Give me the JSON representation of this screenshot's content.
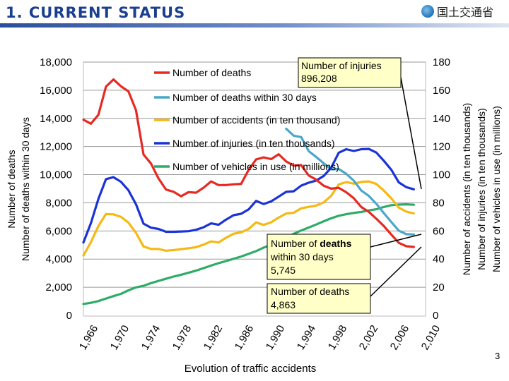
{
  "header": {
    "title": "1. CURRENT STATUS",
    "logo_text": "国土交通省"
  },
  "page_number": "3",
  "caption": "Evolution of traffic accidents",
  "chart_data": {
    "type": "line",
    "title": "Evolution of traffic accidents",
    "xlabel": "",
    "ylabel_left": [
      "Number of deaths",
      "Number of deaths within 30 days"
    ],
    "ylabel_right": [
      "Number of accidents (in ten thousands)",
      "Number of injuries (in ten thousands)",
      "Number of vehicles in use (in millions)"
    ],
    "x_ticks": [
      "1,966",
      "1,970",
      "1,974",
      "1,978",
      "1,982",
      "1,986",
      "1,990",
      "1,994",
      "1,998",
      "2,002",
      "2,006",
      "2,010"
    ],
    "left_ticks": [
      "0",
      "2,000",
      "4,000",
      "6,000",
      "8,000",
      "10,000",
      "12,000",
      "14,000",
      "16,000",
      "18,000"
    ],
    "right_ticks": [
      "0",
      "20",
      "40",
      "60",
      "80",
      "100",
      "120",
      "140",
      "160",
      "180"
    ],
    "xlim": [
      1966,
      2011
    ],
    "ylim_left": [
      0,
      18000
    ],
    "ylim_right": [
      0,
      180
    ],
    "grid": "horizontal",
    "series": [
      {
        "name": "Number of deaths",
        "axis": "left",
        "color": "#e62a22",
        "x": [
          1966,
          1967,
          1968,
          1969,
          1970,
          1971,
          1972,
          1973,
          1974,
          1975,
          1976,
          1977,
          1978,
          1979,
          1980,
          1981,
          1982,
          1983,
          1984,
          1985,
          1986,
          1987,
          1988,
          1989,
          1990,
          1991,
          1992,
          1993,
          1994,
          1995,
          1996,
          1997,
          1998,
          1999,
          2000,
          2001,
          2002,
          2003,
          2004,
          2005,
          2006,
          2007,
          2008,
          2009,
          2010
        ],
        "values": [
          13904,
          13618,
          14256,
          16257,
          16765,
          16278,
          15918,
          14574,
          11432,
          10792,
          9734,
          8945,
          8783,
          8466,
          8760,
          8719,
          9073,
          9520,
          9262,
          9261,
          9317,
          9347,
          10344,
          11086,
          11227,
          11105,
          11451,
          10942,
          10649,
          10679,
          9942,
          9640,
          9211,
          9006,
          9066,
          8747,
          8326,
          7702,
          7358,
          6871,
          6352,
          5744,
          5155,
          4914,
          4863
        ]
      },
      {
        "name": "Number of deaths within 30 days",
        "axis": "left",
        "color": "#4aa7c9",
        "x": [
          1993,
          1994,
          1995,
          1996,
          1997,
          1998,
          1999,
          2000,
          2001,
          2002,
          2003,
          2004,
          2005,
          2006,
          2007,
          2008,
          2009,
          2010
        ],
        "values": [
          13269,
          12768,
          12670,
          11674,
          11254,
          10805,
          10372,
          10403,
          10060,
          9575,
          8877,
          8492,
          7931,
          7272,
          6639,
          6023,
          5772,
          5745
        ]
      },
      {
        "name": "Number of accidents (in ten thousand)",
        "axis": "right",
        "color": "#f5b914",
        "x": [
          1966,
          1967,
          1968,
          1969,
          1970,
          1971,
          1972,
          1973,
          1974,
          1975,
          1976,
          1977,
          1978,
          1979,
          1980,
          1981,
          1982,
          1983,
          1984,
          1985,
          1986,
          1987,
          1988,
          1989,
          1990,
          1991,
          1992,
          1993,
          1994,
          1995,
          1996,
          1997,
          1998,
          1999,
          2000,
          2001,
          2002,
          2003,
          2004,
          2005,
          2006,
          2007,
          2008,
          2009,
          2010
        ],
        "values": [
          42.5,
          52.1,
          63.5,
          72.0,
          71.8,
          70.0,
          65.9,
          58.6,
          49.0,
          47.2,
          47.2,
          46.0,
          46.4,
          47.1,
          47.7,
          48.5,
          50.3,
          52.6,
          51.8,
          55.2,
          58.0,
          59.0,
          61.4,
          66.1,
          64.3,
          66.2,
          69.5,
          72.4,
          72.9,
          76.1,
          77.1,
          78.0,
          80.3,
          85.0,
          93.1,
          94.7,
          93.6,
          94.8,
          95.2,
          93.4,
          88.7,
          83.2,
          76.6,
          73.7,
          72.5
        ]
      },
      {
        "name": "Number of injuries (in ten thousands)",
        "axis": "right",
        "color": "#1a33d6",
        "x": [
          1966,
          1967,
          1968,
          1969,
          1970,
          1971,
          1972,
          1973,
          1974,
          1975,
          1976,
          1977,
          1978,
          1979,
          1980,
          1981,
          1982,
          1983,
          1984,
          1985,
          1986,
          1987,
          1988,
          1989,
          1990,
          1991,
          1992,
          1993,
          1994,
          1995,
          1996,
          1997,
          1998,
          1999,
          2000,
          2001,
          2002,
          2003,
          2004,
          2005,
          2006,
          2007,
          2008,
          2009,
          2010
        ],
        "values": [
          51.8,
          65.6,
          82.8,
          96.8,
          98.2,
          94.9,
          88.9,
          78.9,
          65.2,
          62.3,
          61.4,
          59.4,
          59.4,
          59.6,
          59.8,
          60.8,
          62.6,
          65.4,
          64.4,
          68.1,
          71.2,
          72.2,
          75.3,
          81.4,
          79.1,
          81.0,
          84.4,
          87.8,
          88.2,
          92.2,
          94.3,
          95.8,
          99.1,
          105.0,
          115.6,
          118.1,
          116.8,
          118.1,
          118.3,
          115.7,
          109.9,
          103.5,
          94.5,
          91.1,
          89.6
        ]
      },
      {
        "name": "Number of vehicles in use (in millions)",
        "axis": "right",
        "color": "#2eac66",
        "x": [
          1966,
          1967,
          1968,
          1969,
          1970,
          1971,
          1972,
          1973,
          1974,
          1975,
          1976,
          1977,
          1978,
          1979,
          1980,
          1981,
          1982,
          1983,
          1984,
          1985,
          1986,
          1987,
          1988,
          1989,
          1990,
          1991,
          1992,
          1993,
          1994,
          1995,
          1996,
          1997,
          1998,
          1999,
          2000,
          2001,
          2002,
          2003,
          2004,
          2005,
          2006,
          2007,
          2008,
          2009,
          2010
        ],
        "values": [
          8.1,
          8.9,
          10.2,
          12.0,
          13.7,
          15.3,
          17.8,
          19.9,
          21.0,
          22.9,
          24.5,
          26.0,
          27.6,
          28.9,
          30.3,
          31.8,
          33.6,
          35.4,
          37.1,
          38.6,
          40.2,
          41.8,
          43.7,
          45.7,
          48.2,
          50.1,
          52.6,
          55.5,
          57.9,
          60.3,
          62.4,
          64.6,
          66.9,
          69.0,
          70.8,
          71.9,
          72.8,
          73.5,
          74.6,
          75.4,
          77.0,
          78.3,
          78.7,
          78.9,
          78.6
        ]
      }
    ],
    "annotations": [
      {
        "text": "Number of injuries 896,208",
        "lines": [
          "Number of injuries",
          "896,208"
        ]
      },
      {
        "text": "Number of deaths within 30 days 5,745",
        "lines": [
          "Number of",
          "deaths",
          "within 30 days",
          "5,745"
        ]
      },
      {
        "text": "Number of deaths 4,863",
        "lines": [
          "Number of deaths",
          "4,863"
        ]
      }
    ]
  },
  "colors": {
    "title_blue": "#1a3f8f",
    "annotation_fill": "#ffffc8",
    "grid": "#9a9a9a"
  }
}
